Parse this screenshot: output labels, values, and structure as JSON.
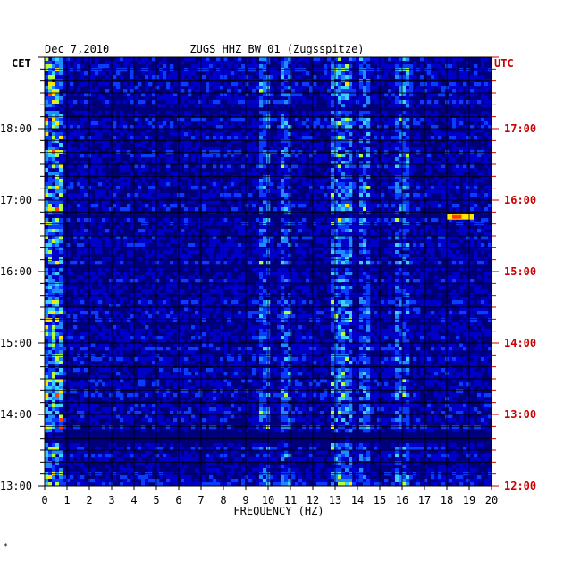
{
  "header": {
    "date": "Dec 7,2010",
    "station": "ZUGS HHZ BW 01 (Zugsspitze)",
    "left_zone": "CET",
    "right_zone": "UTC",
    "footer_mark": "*"
  },
  "colors": {
    "background": "#ffffff",
    "text": "#000000",
    "utc_labels": "#cc0000",
    "grid": "#000000",
    "colormap": [
      "#00007a",
      "#0000c8",
      "#0a3cff",
      "#1e8cff",
      "#3cd2ff",
      "#b4ff3c",
      "#ffe600",
      "#ff3c00"
    ]
  },
  "chart_data": {
    "type": "heatmap",
    "title": "ZUGS HHZ BW 01 (Zugsspitze)",
    "xlabel": "FREQUENCY (HZ)",
    "ylabel_left": "CET",
    "ylabel_right": "UTC",
    "xlim": [
      0,
      20
    ],
    "x_ticks": [
      "0",
      "1",
      "2",
      "3",
      "4",
      "5",
      "6",
      "7",
      "8",
      "9",
      "10",
      "11",
      "12",
      "13",
      "14",
      "15",
      "16",
      "17",
      "18",
      "19",
      "20"
    ],
    "left_ticks": [
      "13:00",
      "14:00",
      "15:00",
      "16:00",
      "17:00",
      "18:00"
    ],
    "right_ticks": [
      "12:00",
      "13:00",
      "14:00",
      "15:00",
      "16:00",
      "17:00"
    ],
    "time_range_utc": [
      "12:00",
      "18:00"
    ],
    "grid": "vertical lines at 1 Hz, horizontal lines every 10 min",
    "colorscale": "dark blue (low) to red (high)",
    "features": [
      {
        "name": "low-frequency energy",
        "freq_hz": [
          0.0,
          0.8
        ],
        "level": "high"
      },
      {
        "name": "spectral line",
        "freq_hz": 9.8,
        "level": "medium"
      },
      {
        "name": "spectral line",
        "freq_hz": 10.8,
        "level": "medium"
      },
      {
        "name": "spectral band",
        "freq_hz": [
          12.8,
          13.8
        ],
        "level": "medium-high"
      },
      {
        "name": "spectral line",
        "freq_hz": 14.3,
        "level": "medium"
      },
      {
        "name": "spectral line",
        "freq_hz": 16.0,
        "level": "medium"
      },
      {
        "name": "event",
        "time_utc": "15:46",
        "freq_hz": [
          18.0,
          19.2
        ],
        "level": "high"
      },
      {
        "name": "quiet interval",
        "time_utc": "12:35",
        "level": "low"
      }
    ]
  }
}
